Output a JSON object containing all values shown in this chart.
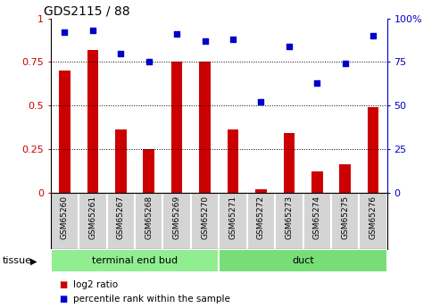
{
  "title": "GDS2115 / 88",
  "samples": [
    "GSM65260",
    "GSM65261",
    "GSM65267",
    "GSM65268",
    "GSM65269",
    "GSM65270",
    "GSM65271",
    "GSM65272",
    "GSM65273",
    "GSM65274",
    "GSM65275",
    "GSM65276"
  ],
  "log2_ratio": [
    0.7,
    0.82,
    0.36,
    0.25,
    0.75,
    0.75,
    0.36,
    0.02,
    0.34,
    0.12,
    0.16,
    0.49
  ],
  "percentile_rank": [
    92,
    93,
    80,
    75,
    91,
    87,
    88,
    52,
    84,
    63,
    74,
    90
  ],
  "bar_color": "#cc0000",
  "scatter_color": "#0000cc",
  "ylim_left": [
    0,
    1.0
  ],
  "ylim_right": [
    0,
    100
  ],
  "yticks_left": [
    0,
    0.25,
    0.5,
    0.75,
    1.0
  ],
  "ytick_labels_left": [
    "0",
    "0.25",
    "0.5",
    "0.75",
    "1"
  ],
  "yticks_right": [
    0,
    25,
    50,
    75,
    100
  ],
  "ytick_labels_right": [
    "0",
    "25",
    "50",
    "75",
    "100%"
  ],
  "groups": [
    {
      "label": "terminal end bud",
      "start": 0,
      "end": 6,
      "color": "#90ee90"
    },
    {
      "label": "duct",
      "start": 6,
      "end": 12,
      "color": "#77dd77"
    }
  ],
  "tissue_label": "tissue",
  "legend_items": [
    {
      "label": "log2 ratio",
      "color": "#cc0000"
    },
    {
      "label": "percentile rank within the sample",
      "color": "#0000cc"
    }
  ],
  "bar_width": 0.4,
  "cell_bg": "#d4d4d4",
  "plot_bg": "#ffffff"
}
